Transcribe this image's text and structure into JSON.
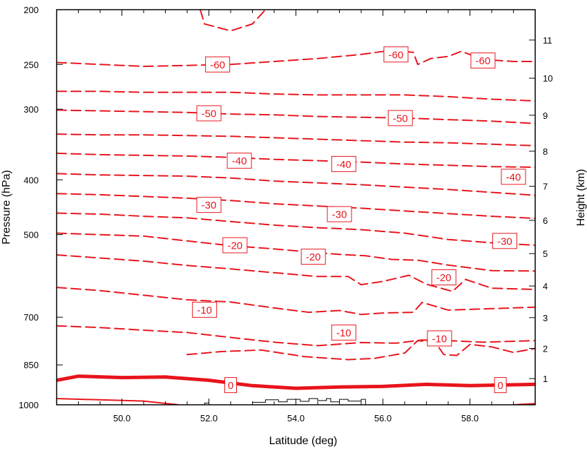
{
  "chart_data": {
    "type": "contour",
    "xlabel": "Latitude (deg)",
    "ylabel_left": "Pressure (hPa)",
    "ylabel_right": "Height (km)",
    "x_range": [
      48.5,
      59.5
    ],
    "y_range_pressure": [
      1000,
      200
    ],
    "y_scale": "log",
    "x_ticks": [
      {
        "value": 50,
        "label": "50.0"
      },
      {
        "value": 52,
        "label": "52.0"
      },
      {
        "value": 54,
        "label": "54.0"
      },
      {
        "value": 56,
        "label": "56.0"
      },
      {
        "value": 58,
        "label": "58.0"
      }
    ],
    "y_ticks_pressure": [
      {
        "value": 200,
        "label": "200"
      },
      {
        "value": 250,
        "label": "250"
      },
      {
        "value": 300,
        "label": "300"
      },
      {
        "value": 400,
        "label": "400"
      },
      {
        "value": 500,
        "label": "500"
      },
      {
        "value": 700,
        "label": "700"
      },
      {
        "value": 850,
        "label": "850"
      },
      {
        "value": 1000,
        "label": "1000"
      }
    ],
    "y_ticks_height": [
      {
        "value": 1,
        "label": "1"
      },
      {
        "value": 2,
        "label": "2"
      },
      {
        "value": 3,
        "label": "3"
      },
      {
        "value": 4,
        "label": "4"
      },
      {
        "value": 5,
        "label": "5"
      },
      {
        "value": 6,
        "label": "6"
      },
      {
        "value": 7,
        "label": "7"
      },
      {
        "value": 8,
        "label": "8"
      },
      {
        "value": 9,
        "label": "9"
      },
      {
        "value": 10,
        "label": "10"
      },
      {
        "value": 11,
        "label": "11"
      }
    ],
    "contour_color": "#e8141c",
    "terrain_color": "#000000",
    "grid": false,
    "contours": [
      {
        "level": 0,
        "style": "thick",
        "points": [
          [
            48.5,
            905
          ],
          [
            49.0,
            890
          ],
          [
            50.0,
            895
          ],
          [
            51.0,
            893
          ],
          [
            52.0,
            905
          ],
          [
            53.0,
            925
          ],
          [
            54.0,
            935
          ],
          [
            55.0,
            930
          ],
          [
            56.0,
            928
          ],
          [
            57.0,
            920
          ],
          [
            58.0,
            925
          ],
          [
            59.5,
            920
          ]
        ]
      },
      {
        "level": 5,
        "style": "solid",
        "points": [
          [
            48.5,
            975
          ],
          [
            49.5,
            980
          ],
          [
            50.5,
            985
          ],
          [
            51.3,
            1000
          ]
        ]
      },
      {
        "level": 5,
        "style": "solid",
        "points": [
          [
            59.0,
            1000
          ],
          [
            59.5,
            995
          ]
        ]
      },
      {
        "level": -5,
        "style": "dashed",
        "points": [
          [
            51.5,
            815
          ],
          [
            52.3,
            805
          ],
          [
            53.2,
            800
          ],
          [
            54.2,
            822
          ],
          [
            55.2,
            832
          ],
          [
            55.8,
            828
          ],
          [
            56.5,
            810
          ],
          [
            56.8,
            770
          ],
          [
            57.2,
            775
          ],
          [
            57.4,
            815
          ],
          [
            57.7,
            818
          ],
          [
            58.0,
            782
          ],
          [
            58.5,
            790
          ],
          [
            59.0,
            808
          ],
          [
            59.5,
            795
          ]
        ]
      },
      {
        "level": -10,
        "style": "dashed",
        "points": [
          [
            48.5,
            725
          ],
          [
            49.5,
            730
          ],
          [
            50.5,
            738
          ],
          [
            51.5,
            745
          ],
          [
            52.5,
            760
          ],
          [
            53.5,
            775
          ],
          [
            54.5,
            786
          ],
          [
            55.5,
            776
          ],
          [
            56.3,
            778
          ],
          [
            56.9,
            768
          ],
          [
            57.5,
            770
          ],
          [
            58.3,
            775
          ],
          [
            59.5,
            770
          ]
        ]
      },
      {
        "level": -15,
        "style": "dashed",
        "points": [
          [
            48.5,
            620
          ],
          [
            49.5,
            628
          ],
          [
            50.5,
            640
          ],
          [
            51.5,
            652
          ],
          [
            52.5,
            658
          ],
          [
            53.5,
            674
          ],
          [
            54.3,
            686
          ],
          [
            55.0,
            681
          ],
          [
            55.5,
            692
          ],
          [
            56.0,
            688
          ],
          [
            56.7,
            686
          ],
          [
            56.9,
            659
          ],
          [
            57.5,
            680
          ],
          [
            58.5,
            676
          ],
          [
            59.5,
            672
          ]
        ]
      },
      {
        "level": -20,
        "style": "dashed",
        "points": [
          [
            48.5,
            543
          ],
          [
            49.5,
            550
          ],
          [
            50.5,
            557
          ],
          [
            51.5,
            567
          ],
          [
            52.5,
            575
          ],
          [
            53.5,
            584
          ],
          [
            54.5,
            593
          ],
          [
            55.2,
            593
          ],
          [
            55.5,
            613
          ],
          [
            56.0,
            605
          ],
          [
            56.6,
            590
          ],
          [
            57.0,
            612
          ],
          [
            57.6,
            630
          ],
          [
            57.9,
            600
          ],
          [
            58.5,
            622
          ],
          [
            59.5,
            625
          ]
        ]
      },
      {
        "level": -25,
        "style": "dashed",
        "points": [
          [
            48.5,
            497
          ],
          [
            49.5,
            500
          ],
          [
            50.5,
            503
          ],
          [
            51.5,
            513
          ],
          [
            52.5,
            523
          ],
          [
            53.5,
            530
          ],
          [
            54.5,
            538
          ],
          [
            55.0,
            542
          ],
          [
            55.6,
            545
          ],
          [
            56.2,
            553
          ],
          [
            56.8,
            555
          ],
          [
            57.5,
            566
          ],
          [
            58.5,
            579
          ],
          [
            59.5,
            580
          ]
        ]
      },
      {
        "level": -30,
        "style": "dashed",
        "points": [
          [
            48.5,
            458
          ],
          [
            49.5,
            460
          ],
          [
            50.5,
            464
          ],
          [
            51.5,
            467
          ],
          [
            52.5,
            474
          ],
          [
            53.5,
            481
          ],
          [
            54.5,
            486
          ],
          [
            55.5,
            490
          ],
          [
            56.5,
            497
          ],
          [
            57.5,
            510
          ],
          [
            58.5,
            517
          ],
          [
            59.5,
            522
          ]
        ]
      },
      {
        "level": -35,
        "style": "dashed",
        "points": [
          [
            48.5,
            423
          ],
          [
            49.5,
            425
          ],
          [
            50.5,
            428
          ],
          [
            51.5,
            431
          ],
          [
            52.5,
            435
          ],
          [
            53.5,
            441
          ],
          [
            54.5,
            445
          ],
          [
            55.5,
            449
          ],
          [
            56.5,
            454
          ],
          [
            57.5,
            459
          ],
          [
            58.5,
            464
          ],
          [
            59.5,
            468
          ]
        ]
      },
      {
        "level": -40,
        "style": "dashed",
        "points": [
          [
            48.5,
            390
          ],
          [
            49.5,
            392
          ],
          [
            50.5,
            393
          ],
          [
            51.5,
            394
          ],
          [
            52.5,
            397
          ],
          [
            53.5,
            402
          ],
          [
            54.5,
            405
          ],
          [
            55.5,
            408
          ],
          [
            56.5,
            412
          ],
          [
            57.5,
            416
          ],
          [
            58.5,
            421
          ],
          [
            59.5,
            426
          ]
        ]
      },
      {
        "level": -45,
        "style": "dashed",
        "points": [
          [
            48.5,
            359
          ],
          [
            49.5,
            361
          ],
          [
            50.5,
            362
          ],
          [
            51.5,
            363
          ],
          [
            52.5,
            365
          ],
          [
            53.5,
            368
          ],
          [
            54.5,
            370
          ],
          [
            55.5,
            372
          ],
          [
            56.5,
            375
          ],
          [
            57.5,
            377
          ],
          [
            58.5,
            379
          ],
          [
            59.5,
            380
          ]
        ]
      },
      {
        "level": -50,
        "style": "dashed",
        "points": [
          [
            48.5,
            332
          ],
          [
            49.5,
            333
          ],
          [
            50.5,
            333
          ],
          [
            51.5,
            334
          ],
          [
            52.5,
            335
          ],
          [
            53.5,
            337
          ],
          [
            54.5,
            339
          ],
          [
            55.5,
            341
          ],
          [
            56.5,
            343
          ],
          [
            57.5,
            344
          ],
          [
            58.5,
            346
          ],
          [
            59.5,
            348
          ]
        ]
      },
      {
        "level": -55,
        "style": "dashed",
        "points": [
          [
            48.5,
            301
          ],
          [
            49.5,
            302
          ],
          [
            50.5,
            303
          ],
          [
            51.5,
            304
          ],
          [
            52.5,
            306
          ],
          [
            53.5,
            307
          ],
          [
            54.5,
            309
          ],
          [
            55.5,
            310
          ],
          [
            56.5,
            311
          ],
          [
            57.5,
            313
          ],
          [
            58.5,
            315
          ],
          [
            59.5,
            318
          ]
        ]
      },
      {
        "level": -60,
        "style": "dashed",
        "points": [
          [
            48.5,
            279
          ],
          [
            49.5,
            279
          ],
          [
            50.5,
            280
          ],
          [
            51.5,
            280
          ],
          [
            52.5,
            280
          ],
          [
            53.5,
            282
          ],
          [
            54.5,
            283
          ],
          [
            55.5,
            283
          ],
          [
            56.5,
            283
          ],
          [
            57.5,
            285
          ],
          [
            58.5,
            288
          ],
          [
            59.5,
            290
          ]
        ]
      },
      {
        "level": -65,
        "style": "dashed",
        "points": [
          [
            48.5,
            248
          ],
          [
            49.5,
            250
          ],
          [
            50.5,
            252
          ],
          [
            51.5,
            251
          ],
          [
            52.5,
            250
          ],
          [
            53.5,
            247
          ],
          [
            54.5,
            244
          ],
          [
            55.5,
            240
          ],
          [
            56.2,
            236
          ],
          [
            56.7,
            238
          ],
          [
            56.8,
            250
          ],
          [
            57.1,
            244
          ],
          [
            57.5,
            242
          ],
          [
            57.8,
            237
          ],
          [
            58.3,
            245
          ],
          [
            59.0,
            247
          ],
          [
            59.5,
            247
          ]
        ]
      },
      {
        "level": -70,
        "style": "dashed",
        "points": [
          [
            51.8,
            200
          ],
          [
            51.9,
            212
          ],
          [
            52.5,
            218
          ],
          [
            53.0,
            212
          ],
          [
            53.3,
            200
          ]
        ]
      }
    ],
    "contour_labels": [
      {
        "text": "-60",
        "lat": 52.2,
        "p": 250
      },
      {
        "text": "-60",
        "lat": 56.3,
        "p": 240
      },
      {
        "text": "-60",
        "lat": 58.3,
        "p": 246
      },
      {
        "text": "-50",
        "lat": 52.0,
        "p": 305
      },
      {
        "text": "-50",
        "lat": 56.4,
        "p": 311
      },
      {
        "text": "-40",
        "lat": 52.7,
        "p": 370
      },
      {
        "text": "-40",
        "lat": 55.1,
        "p": 375
      },
      {
        "text": "-40",
        "lat": 59.0,
        "p": 395
      },
      {
        "text": "-30",
        "lat": 52.0,
        "p": 443
      },
      {
        "text": "-30",
        "lat": 55.0,
        "p": 460
      },
      {
        "text": "-30",
        "lat": 58.8,
        "p": 513
      },
      {
        "text": "-20",
        "lat": 52.6,
        "p": 522
      },
      {
        "text": "-20",
        "lat": 54.4,
        "p": 547
      },
      {
        "text": "-20",
        "lat": 57.4,
        "p": 595
      },
      {
        "text": "-10",
        "lat": 51.9,
        "p": 679
      },
      {
        "text": "-10",
        "lat": 55.1,
        "p": 745
      },
      {
        "text": "-10",
        "lat": 57.3,
        "p": 763
      },
      {
        "text": "0",
        "lat": 52.5,
        "p": 923
      },
      {
        "text": "0",
        "lat": 58.7,
        "p": 923
      }
    ],
    "terrain": [
      [
        53.0,
        1000
      ],
      [
        53.0,
        990
      ],
      [
        53.3,
        990
      ],
      [
        53.3,
        980
      ],
      [
        53.6,
        980
      ],
      [
        53.6,
        988
      ],
      [
        53.8,
        988
      ],
      [
        53.8,
        978
      ],
      [
        54.1,
        978
      ],
      [
        54.1,
        986
      ],
      [
        54.3,
        986
      ],
      [
        54.3,
        975
      ],
      [
        54.5,
        975
      ],
      [
        54.5,
        983
      ],
      [
        54.7,
        983
      ],
      [
        54.7,
        975
      ],
      [
        54.8,
        975
      ],
      [
        54.8,
        988
      ],
      [
        55.0,
        988
      ],
      [
        55.0,
        978
      ],
      [
        55.2,
        978
      ],
      [
        55.2,
        985
      ],
      [
        55.5,
        985
      ],
      [
        55.5,
        978
      ],
      [
        55.6,
        978
      ],
      [
        55.6,
        1000
      ]
    ],
    "terrain_small": [
      [
        51.9,
        1000
      ],
      [
        51.9,
        993
      ],
      [
        52.0,
        993
      ],
      [
        52.0,
        1000
      ]
    ]
  }
}
